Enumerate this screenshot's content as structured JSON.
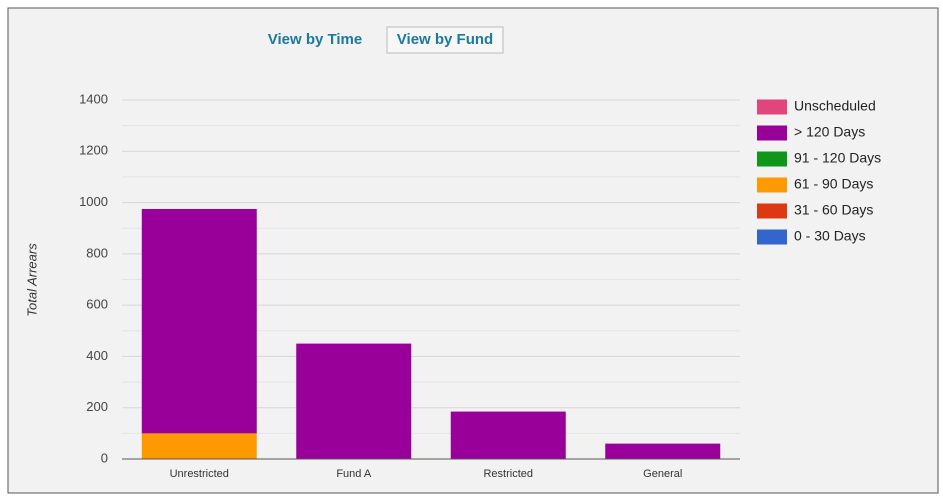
{
  "tabs": [
    "View by Time",
    "View by Fund"
  ],
  "chart_data": {
    "type": "stacked_bar",
    "y_label": "Total Arrears",
    "categories": [
      "Unrestricted",
      "Fund A",
      "Restricted",
      "General"
    ],
    "series": [
      {
        "name": "Unscheduled",
        "color": "#e0457b",
        "values": [
          0,
          0,
          0,
          0
        ]
      },
      {
        "name": "> 120 Days",
        "color": "#990099",
        "values": [
          875,
          450,
          185,
          60
        ]
      },
      {
        "name": "91 - 120 Days",
        "color": "#109618",
        "values": [
          0,
          0,
          0,
          0
        ]
      },
      {
        "name": "61 - 90 Days",
        "color": "#ff9900",
        "values": [
          100,
          0,
          0,
          0
        ]
      },
      {
        "name": "31 - 60 Days",
        "color": "#dc3912",
        "values": [
          0,
          0,
          0,
          0
        ]
      },
      {
        "name": "0 - 30 Days",
        "color": "#3366cc",
        "values": [
          0,
          0,
          0,
          0
        ]
      }
    ],
    "ylim": [
      0,
      1400
    ],
    "yticks": [
      0,
      200,
      400,
      600,
      800,
      1000,
      1200,
      1400
    ],
    "minor_yticks": [
      100,
      300,
      500,
      700,
      900,
      1100,
      1300
    ],
    "grid": true,
    "legend": "right"
  }
}
